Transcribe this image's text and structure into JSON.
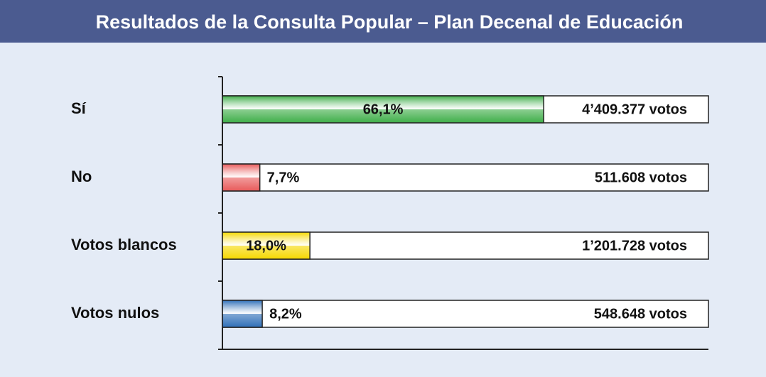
{
  "chart_data": {
    "type": "barh",
    "title": "Resultados de la Consulta Popular – Plan Decenal de Educación",
    "categories": [
      "Sí",
      "No",
      "Votos blancos",
      "Votos nulos"
    ],
    "values": [
      66.1,
      7.7,
      18.0,
      8.2
    ],
    "value_labels": [
      "66,1%",
      "7,7%",
      "18,0%",
      "8,2%"
    ],
    "colors": [
      "#3fae49",
      "#e85a5a",
      "#f6d800",
      "#2f6fb8"
    ],
    "annotations": [
      "4’409.377 votos",
      "511.608 votos",
      "1’201.728 votos",
      "548.648 votos"
    ],
    "xlim": [
      0,
      100
    ]
  }
}
